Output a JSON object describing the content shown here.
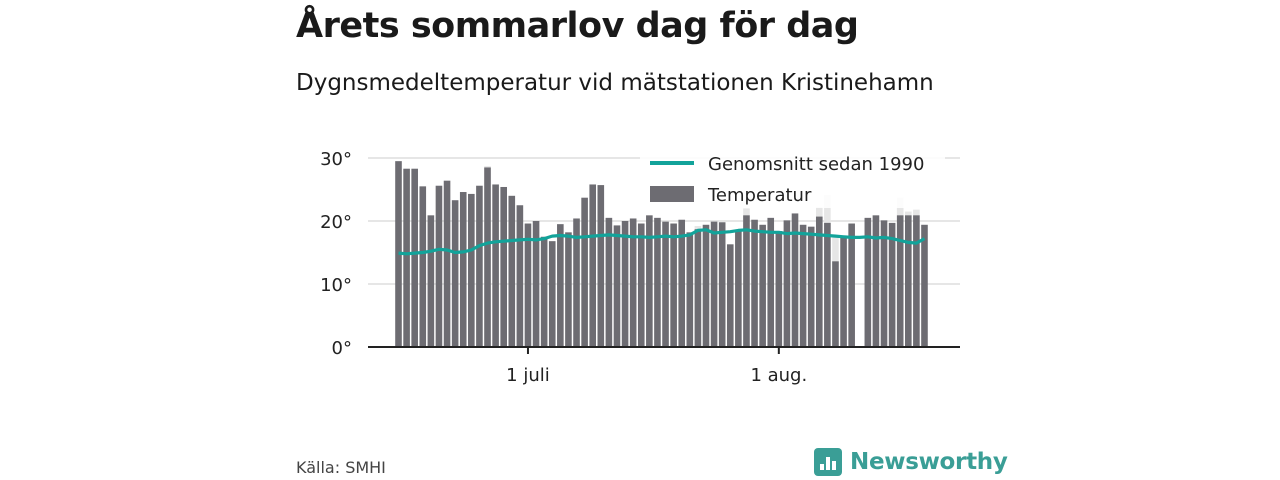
{
  "title": "Årets sommarlov dag för dag",
  "subtitle": "Dygnsmedeltemperatur vid mätstationen Kristinehamn",
  "source": "Källa: SMHI",
  "brand": {
    "name": "Newsworthy",
    "icon": "bar-chart-speech-icon",
    "color": "#3a9e96"
  },
  "colors": {
    "bar": "#6d6c72",
    "bar_ghost": "#e6e6e6",
    "average_line": "#12a39a",
    "grid": "#dddddd"
  },
  "chart_data": {
    "type": "bar",
    "x_start": "2019-06-15",
    "x_ticks": [
      {
        "date": "2019-07-01",
        "label": "1 juli"
      },
      {
        "date": "2019-08-01",
        "label": "1 aug."
      }
    ],
    "ylim": [
      0,
      30
    ],
    "y_ticks": [
      {
        "value": 0,
        "label": "0°"
      },
      {
        "value": 10,
        "label": "10°"
      },
      {
        "value": 20,
        "label": "20°"
      },
      {
        "value": 30,
        "label": "30°"
      }
    ],
    "grid": true,
    "legend_position": "top-right",
    "series": [
      {
        "name": "Temperatur",
        "kind": "bar",
        "values": [
          29.5,
          28.3,
          28.3,
          25.5,
          20.9,
          25.6,
          26.4,
          23.3,
          24.6,
          24.3,
          25.6,
          28.5,
          25.8,
          25.4,
          24.0,
          22.5,
          19.6,
          20.0,
          17.5,
          16.8,
          19.5,
          18.2,
          20.4,
          23.7,
          25.8,
          25.7,
          20.5,
          19.3,
          20.0,
          20.4,
          19.6,
          20.9,
          20.5,
          19.9,
          19.6,
          20.2,
          18.2,
          18.7,
          19.4,
          19.9,
          19.8,
          16.3,
          18.6,
          20.9,
          20.2,
          19.4,
          20.5,
          18.4,
          20.1,
          21.2,
          19.4,
          19.1,
          20.7,
          19.7,
          13.6,
          17.7,
          19.6,
          null,
          20.5,
          20.9,
          20.1,
          19.7,
          20.9,
          20.9,
          20.9,
          19.4
        ]
      },
      {
        "name": "Genomsnitt sedan 1990",
        "kind": "line",
        "values": [
          14.9,
          14.8,
          14.9,
          15.0,
          15.2,
          15.5,
          15.4,
          15.0,
          15.1,
          15.4,
          16.1,
          16.5,
          16.7,
          16.8,
          16.9,
          17.0,
          17.1,
          17.0,
          17.2,
          17.6,
          17.7,
          17.6,
          17.4,
          17.5,
          17.6,
          17.7,
          17.8,
          17.7,
          17.6,
          17.5,
          17.5,
          17.4,
          17.5,
          17.6,
          17.5,
          17.6,
          17.8,
          18.5,
          18.6,
          18.1,
          18.2,
          18.3,
          18.5,
          18.6,
          18.4,
          18.3,
          18.2,
          18.2,
          18.0,
          18.1,
          18.0,
          17.9,
          17.8,
          17.7,
          17.6,
          17.5,
          17.4,
          17.4,
          17.5,
          17.3,
          17.4,
          17.2,
          16.9,
          16.6,
          16.5,
          17.2
        ]
      }
    ],
    "ghost_bars": [
      {
        "index": 11,
        "value": 28.7
      },
      {
        "index": 37,
        "value": 19.2
      },
      {
        "index": 43,
        "value": 22.0
      },
      {
        "index": 52,
        "value": 22.2
      },
      {
        "index": 53,
        "value": 24.1
      },
      {
        "index": 54,
        "value": 17.5
      },
      {
        "index": 62,
        "value": 23.7
      },
      {
        "index": 63,
        "value": 21.5
      },
      {
        "index": 64,
        "value": 21.8
      }
    ],
    "legend": [
      {
        "label": "Genomsnitt sedan 1990",
        "kind": "line"
      },
      {
        "label": "Temperatur",
        "kind": "bar"
      }
    ]
  }
}
